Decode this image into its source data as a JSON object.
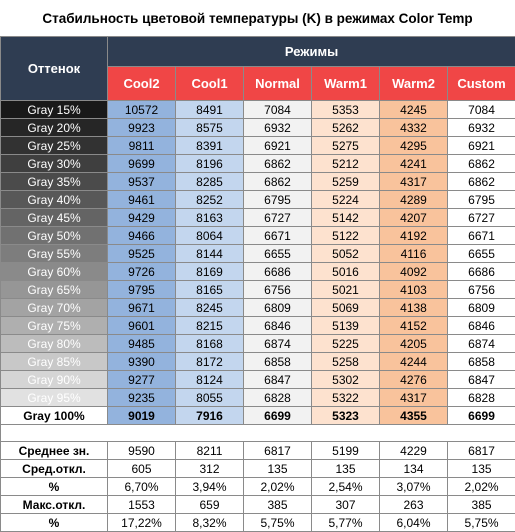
{
  "title": "Стабильность цветовой температуры (K) в режимах Color Temp",
  "header": {
    "shade_label": "Оттенок",
    "modes_label": "Режимы",
    "modes": [
      "Cool2",
      "Cool1",
      "Normal",
      "Warm1",
      "Warm2",
      "Custom"
    ]
  },
  "rows": [
    {
      "label": "Gray 15%",
      "values": [
        "10572",
        "8491",
        "7084",
        "5353",
        "4245",
        "7084"
      ]
    },
    {
      "label": "Gray 20%",
      "values": [
        "9923",
        "8575",
        "6932",
        "5262",
        "4332",
        "6932"
      ]
    },
    {
      "label": "Gray 25%",
      "values": [
        "9811",
        "8391",
        "6921",
        "5275",
        "4295",
        "6921"
      ]
    },
    {
      "label": "Gray 30%",
      "values": [
        "9699",
        "8196",
        "6862",
        "5212",
        "4241",
        "6862"
      ]
    },
    {
      "label": "Gray 35%",
      "values": [
        "9537",
        "8285",
        "6862",
        "5259",
        "4317",
        "6862"
      ]
    },
    {
      "label": "Gray 40%",
      "values": [
        "9461",
        "8252",
        "6795",
        "5224",
        "4289",
        "6795"
      ]
    },
    {
      "label": "Gray 45%",
      "values": [
        "9429",
        "8163",
        "6727",
        "5142",
        "4207",
        "6727"
      ]
    },
    {
      "label": "Gray 50%",
      "values": [
        "9466",
        "8064",
        "6671",
        "5122",
        "4192",
        "6671"
      ]
    },
    {
      "label": "Gray 55%",
      "values": [
        "9525",
        "8144",
        "6655",
        "5052",
        "4116",
        "6655"
      ]
    },
    {
      "label": "Gray 60%",
      "values": [
        "9726",
        "8169",
        "6686",
        "5016",
        "4092",
        "6686"
      ]
    },
    {
      "label": "Gray 65%",
      "values": [
        "9795",
        "8165",
        "6756",
        "5021",
        "4103",
        "6756"
      ]
    },
    {
      "label": "Gray 70%",
      "values": [
        "9671",
        "8245",
        "6809",
        "5069",
        "4138",
        "6809"
      ]
    },
    {
      "label": "Gray 75%",
      "values": [
        "9601",
        "8215",
        "6846",
        "5139",
        "4152",
        "6846"
      ]
    },
    {
      "label": "Gray 80%",
      "values": [
        "9485",
        "8168",
        "6874",
        "5225",
        "4205",
        "6874"
      ]
    },
    {
      "label": "Gray 85%",
      "values": [
        "9390",
        "8172",
        "6858",
        "5258",
        "4244",
        "6858"
      ]
    },
    {
      "label": "Gray 90%",
      "values": [
        "9277",
        "8124",
        "6847",
        "5302",
        "4276",
        "6847"
      ]
    },
    {
      "label": "Gray 95%",
      "values": [
        "9235",
        "8055",
        "6828",
        "5322",
        "4317",
        "6828"
      ]
    },
    {
      "label": "Gray 100%",
      "values": [
        "9019",
        "7916",
        "6699",
        "5323",
        "4355",
        "6699"
      ]
    }
  ],
  "stats": [
    {
      "label": "Среднее зн.",
      "values": [
        "9590",
        "8211",
        "6817",
        "5199",
        "4229",
        "6817"
      ]
    },
    {
      "label": "Сред.откл.",
      "values": [
        "605",
        "312",
        "135",
        "135",
        "134",
        "135"
      ]
    },
    {
      "label": "%",
      "values": [
        "6,70%",
        "3,94%",
        "2,02%",
        "2,54%",
        "3,07%",
        "2,02%"
      ]
    },
    {
      "label": "Макс.откл.",
      "values": [
        "1553",
        "659",
        "385",
        "307",
        "263",
        "385"
      ]
    },
    {
      "label": "%",
      "values": [
        "17,22%",
        "8,32%",
        "5,75%",
        "5,77%",
        "6,04%",
        "5,75%"
      ]
    }
  ],
  "colors": {
    "header_dark": "#2f3d52",
    "header_red": "#f04646",
    "cool2_bg": "#93b3dd",
    "cool1_bg": "#c3d6ee",
    "normal_bg": "#f2f2f2",
    "warm1_bg": "#fde2cf",
    "warm2_bg": "#f9c39c"
  }
}
